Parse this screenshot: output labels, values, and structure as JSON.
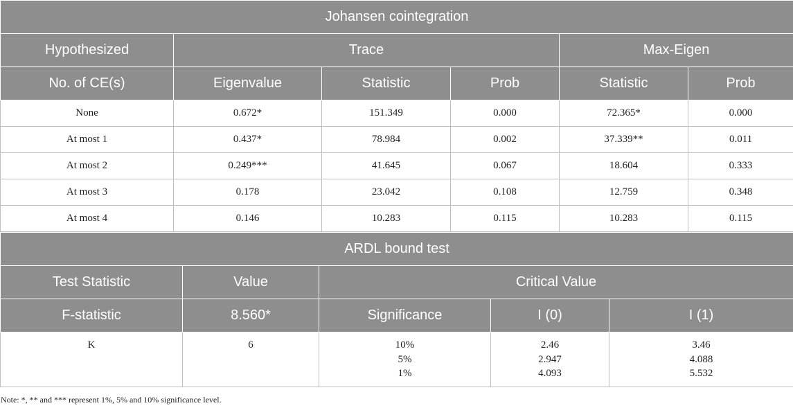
{
  "johansen": {
    "title": "Johansen cointegration",
    "group_headers": {
      "hypothesized": "Hypothesized",
      "trace": "Trace",
      "max_eigen": "Max-Eigen"
    },
    "columns": {
      "no_ce": "No. of CE(s)",
      "eigenvalue": "Eigenvalue",
      "trace_statistic": "Statistic",
      "trace_prob": "Prob",
      "max_statistic": "Statistic",
      "max_prob": "Prob"
    },
    "rows": [
      {
        "ce": "None",
        "eigenvalue": "0.672*",
        "trace_stat": "151.349",
        "trace_prob": "0.000",
        "max_stat": "72.365*",
        "max_prob": "0.000"
      },
      {
        "ce": "At most 1",
        "eigenvalue": "0.437*",
        "trace_stat": "78.984",
        "trace_prob": "0.002",
        "max_stat": "37.339**",
        "max_prob": "0.011"
      },
      {
        "ce": "At most 2",
        "eigenvalue": "0.249***",
        "trace_stat": "41.645",
        "trace_prob": "0.067",
        "max_stat": "18.604",
        "max_prob": "0.333"
      },
      {
        "ce": "At most 3",
        "eigenvalue": "0.178",
        "trace_stat": "23.042",
        "trace_prob": "0.108",
        "max_stat": "12.759",
        "max_prob": "0.348"
      },
      {
        "ce": "At most 4",
        "eigenvalue": "0.146",
        "trace_stat": "10.283",
        "trace_prob": "0.115",
        "max_stat": "10.283",
        "max_prob": "0.115"
      }
    ]
  },
  "ardl": {
    "title": "ARDL bound test",
    "headers": {
      "test_statistic": "Test Statistic",
      "value": "Value",
      "critical_value": "Critical Value"
    },
    "subheaders": {
      "f_statistic": "F-statistic",
      "f_value": "8.560*",
      "significance": "Significance",
      "i0": "I (0)",
      "i1": "I (1)"
    },
    "row": {
      "label": "K",
      "value": "6",
      "significance": [
        "10%",
        "5%",
        "1%"
      ],
      "i0": [
        "2.46",
        "2.947",
        "4.093"
      ],
      "i1": [
        "3.46",
        "4.088",
        "5.532"
      ]
    }
  },
  "note": "Note: *, ** and *** represent 1%, 5% and 10% significance level."
}
